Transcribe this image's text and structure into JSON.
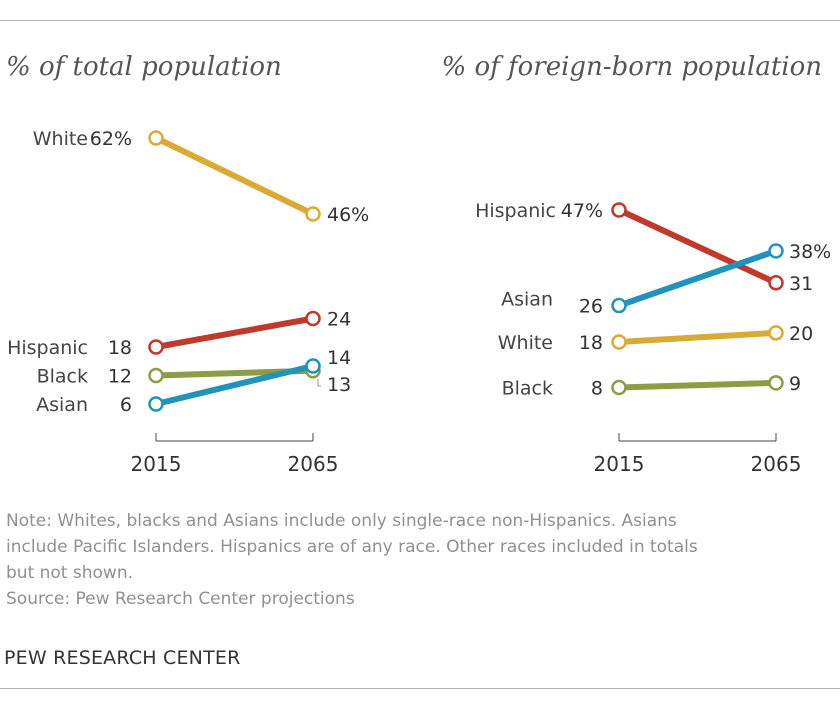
{
  "colors": {
    "White": "#d9ab32",
    "Hispanic": "#c0392b",
    "Black": "#8e9b47",
    "Asian": "#1f93b9",
    "axis": "#444444"
  },
  "chart_data": [
    {
      "type": "line",
      "title": "% of total population",
      "x": [
        "2015",
        "2065"
      ],
      "series": [
        {
          "name": "White",
          "label": "White",
          "values": [
            62,
            46
          ],
          "start_label": "62%",
          "end_label": "46%"
        },
        {
          "name": "Hispanic",
          "label": "Hispanic",
          "values": [
            18,
            24
          ],
          "start_label": "18",
          "end_label": "24"
        },
        {
          "name": "Black",
          "label": "Black",
          "values": [
            12,
            13
          ],
          "start_label": "12",
          "end_label": "13"
        },
        {
          "name": "Asian",
          "label": "Asian",
          "values": [
            6,
            14
          ],
          "start_label": "6",
          "end_label": "14"
        }
      ]
    },
    {
      "type": "line",
      "title": "% of foreign-born population",
      "x": [
        "2015",
        "2065"
      ],
      "series": [
        {
          "name": "Hispanic",
          "label": "Hispanic",
          "values": [
            47,
            31
          ],
          "start_label": "47%",
          "end_label": "31"
        },
        {
          "name": "Asian",
          "label": "Asian",
          "values": [
            26,
            38
          ],
          "start_label": "26",
          "end_label": "38%"
        },
        {
          "name": "White",
          "label": "White",
          "values": [
            18,
            20
          ],
          "start_label": "18",
          "end_label": "20"
        },
        {
          "name": "Black",
          "label": "Black",
          "values": [
            8,
            9
          ],
          "start_label": "8",
          "end_label": "9"
        }
      ]
    }
  ],
  "notes": {
    "line1": "Note: Whites, blacks and Asians include only single-race non-Hispanics. Asians",
    "line2": "include Pacific Islanders. Hispanics are of any race. Other races included in totals",
    "line3": "but not shown.",
    "source": "Source: Pew Research Center projections"
  },
  "footer": "PEW RESEARCH CENTER"
}
